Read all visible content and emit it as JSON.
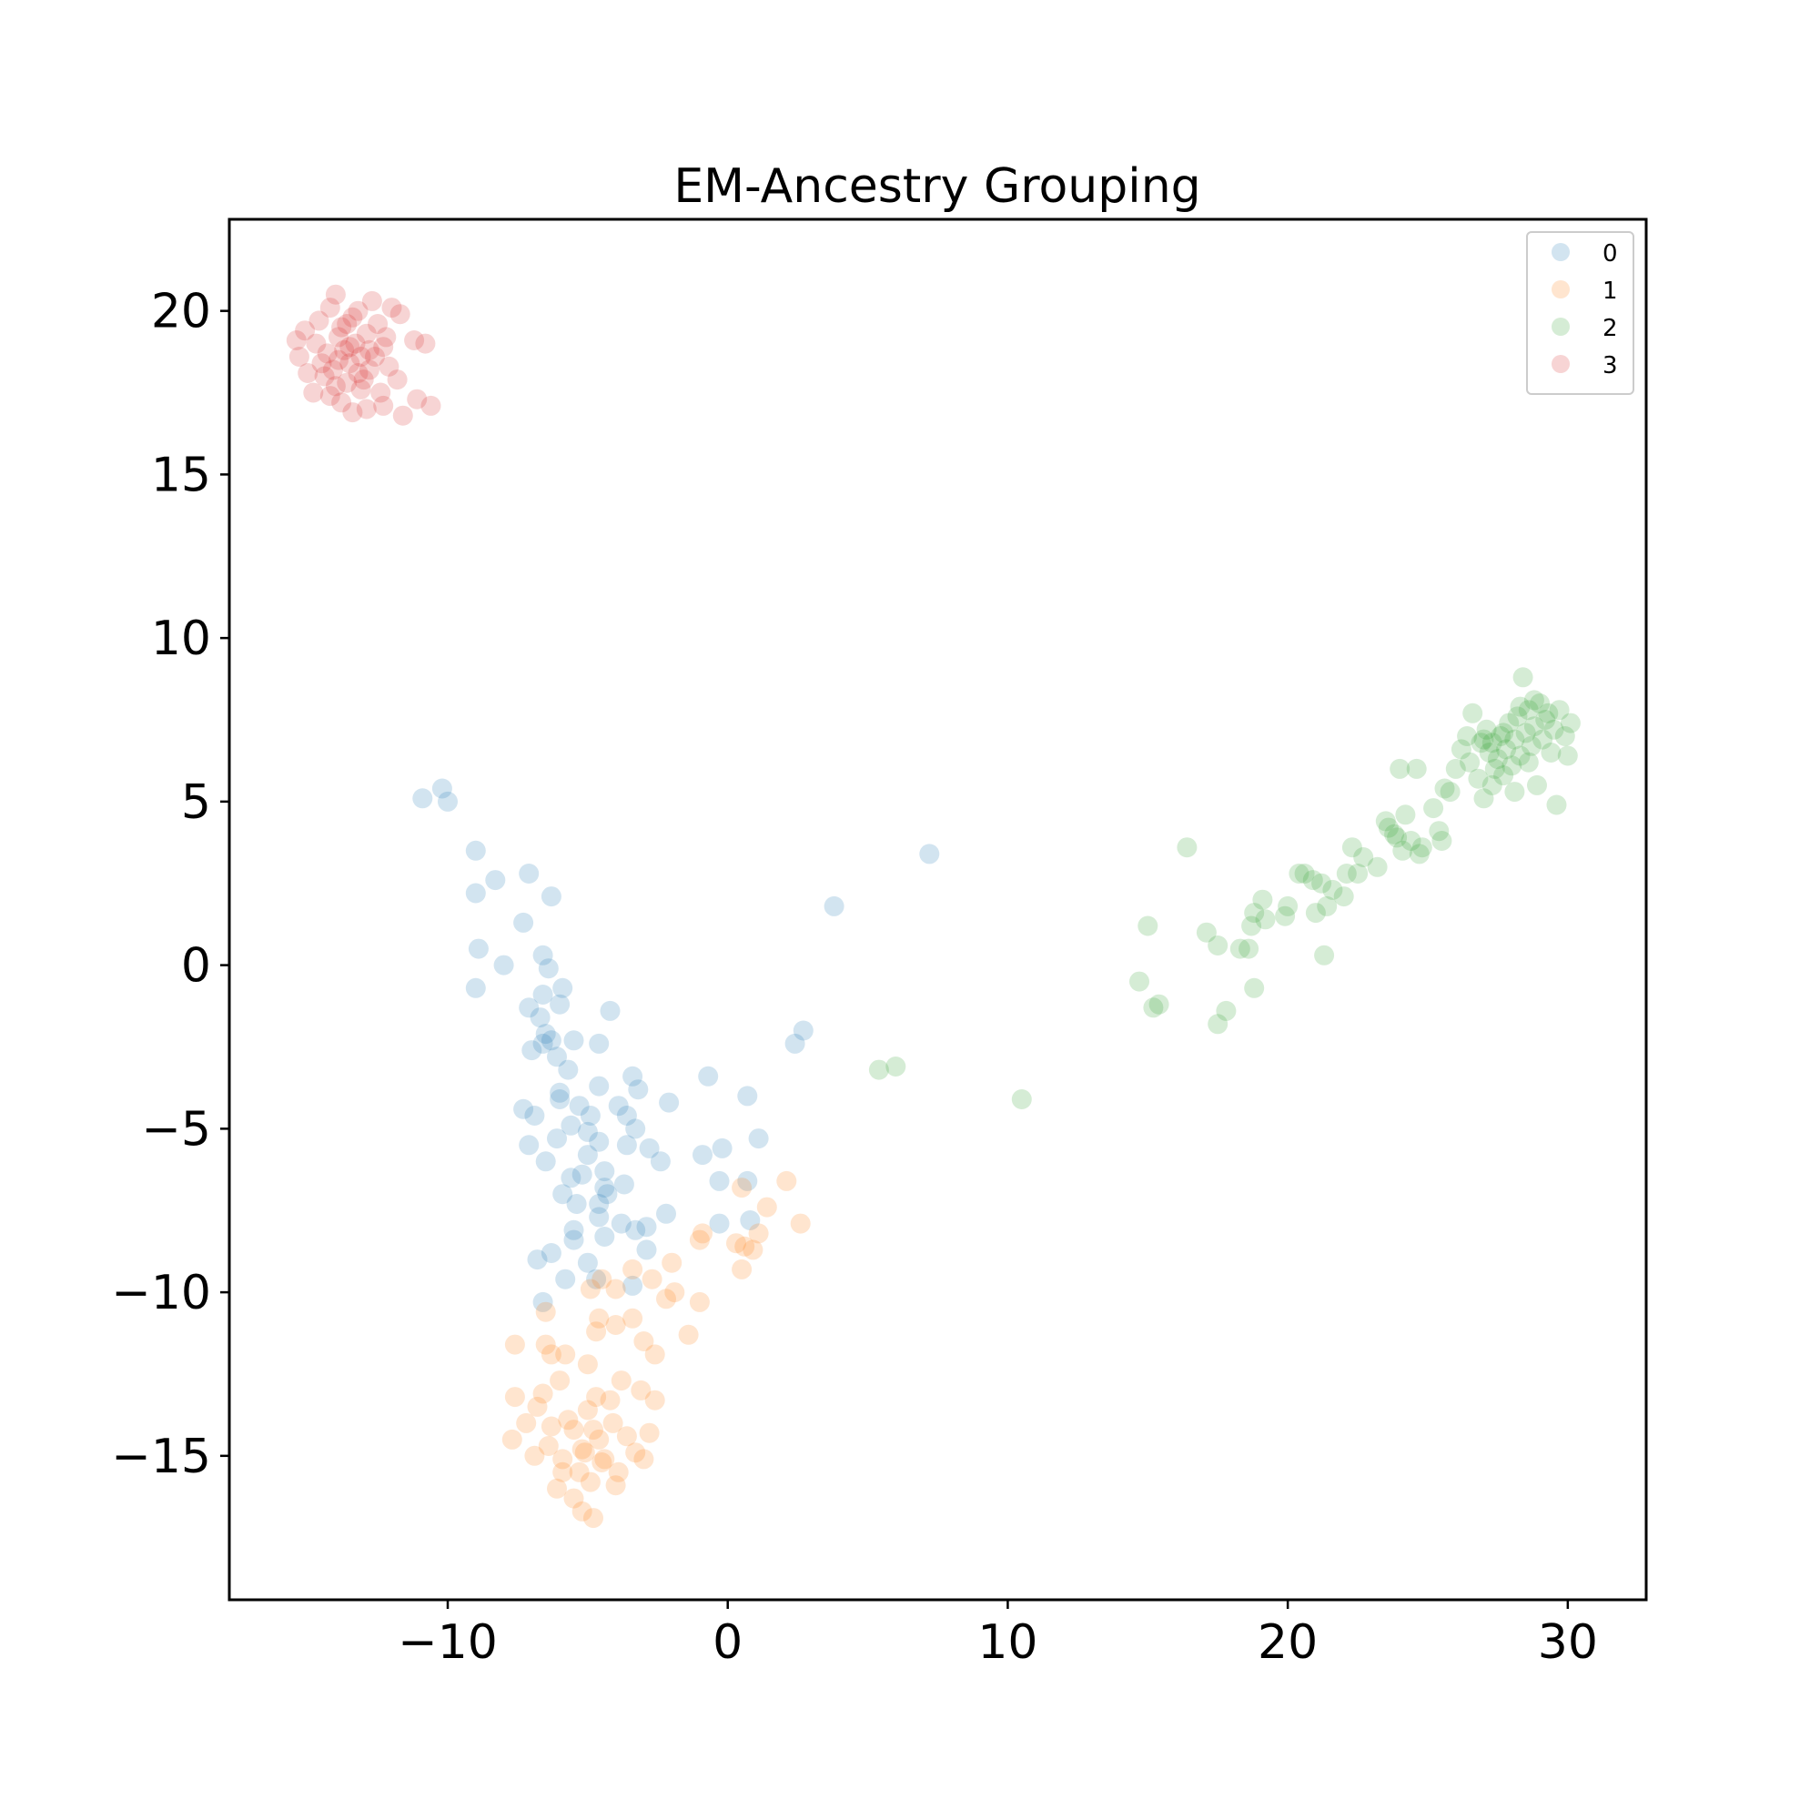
{
  "chart_data": {
    "type": "scatter",
    "title": "EM-Ancestry Grouping",
    "xlabel": "",
    "ylabel": "",
    "xlim": [
      -17.8,
      32.8
    ],
    "ylim": [
      -19.4,
      22.8
    ],
    "xticks": [
      -10,
      0,
      10,
      20,
      30
    ],
    "yticks": [
      -15,
      -10,
      -5,
      0,
      5,
      10,
      15,
      20
    ],
    "xtick_labels": [
      "−10",
      "0",
      "10",
      "20",
      "30"
    ],
    "ytick_labels": [
      "−15",
      "−10",
      "−5",
      "0",
      "5",
      "10",
      "15",
      "20"
    ],
    "grid": false,
    "legend_position": "top-right",
    "series": [
      {
        "name": "0",
        "color": "#1f77b4",
        "points": [
          [
            -10.9,
            5.1
          ],
          [
            -10.2,
            5.4
          ],
          [
            -10.0,
            5.0
          ],
          [
            -9.0,
            3.5
          ],
          [
            -9.0,
            2.2
          ],
          [
            -8.3,
            2.6
          ],
          [
            -7.1,
            2.8
          ],
          [
            -6.3,
            2.1
          ],
          [
            -7.3,
            1.3
          ],
          [
            -8.9,
            0.5
          ],
          [
            -8.0,
            0.0
          ],
          [
            -6.6,
            0.3
          ],
          [
            -9.0,
            -0.7
          ],
          [
            -6.4,
            -0.1
          ],
          [
            -5.9,
            -0.7
          ],
          [
            -6.6,
            -0.9
          ],
          [
            -7.1,
            -1.3
          ],
          [
            -6.0,
            -1.2
          ],
          [
            -6.7,
            -1.6
          ],
          [
            -4.2,
            -1.4
          ],
          [
            -6.5,
            -2.1
          ],
          [
            -6.3,
            -2.3
          ],
          [
            -7.0,
            -2.6
          ],
          [
            -5.5,
            -2.3
          ],
          [
            -4.6,
            -2.4
          ],
          [
            -6.1,
            -2.8
          ],
          [
            -6.6,
            -2.4
          ],
          [
            -5.7,
            -3.2
          ],
          [
            -6.0,
            -3.9
          ],
          [
            -4.6,
            -3.7
          ],
          [
            -3.4,
            -3.4
          ],
          [
            -3.2,
            -3.8
          ],
          [
            -6.0,
            -4.1
          ],
          [
            -5.3,
            -4.3
          ],
          [
            -7.3,
            -4.4
          ],
          [
            -3.9,
            -4.3
          ],
          [
            -4.9,
            -4.6
          ],
          [
            -3.6,
            -4.6
          ],
          [
            -2.1,
            -4.2
          ],
          [
            -6.9,
            -4.6
          ],
          [
            -5.6,
            -4.9
          ],
          [
            -5.0,
            -5.1
          ],
          [
            -3.3,
            -5.0
          ],
          [
            -6.1,
            -5.3
          ],
          [
            -4.6,
            -5.4
          ],
          [
            -3.6,
            -5.5
          ],
          [
            -7.1,
            -5.5
          ],
          [
            -2.8,
            -5.6
          ],
          [
            -5.0,
            -5.8
          ],
          [
            -2.4,
            -6.0
          ],
          [
            -6.5,
            -6.0
          ],
          [
            -4.4,
            -6.3
          ],
          [
            -5.2,
            -6.4
          ],
          [
            -5.6,
            -6.5
          ],
          [
            -3.7,
            -6.7
          ],
          [
            -4.4,
            -6.8
          ],
          [
            -4.3,
            -7.0
          ],
          [
            -4.6,
            -7.3
          ],
          [
            -5.4,
            -7.3
          ],
          [
            -5.9,
            -7.0
          ],
          [
            -4.6,
            -7.7
          ],
          [
            -2.2,
            -7.6
          ],
          [
            -3.8,
            -7.9
          ],
          [
            -3.3,
            -8.1
          ],
          [
            -2.9,
            -8.0
          ],
          [
            -5.5,
            -8.1
          ],
          [
            -5.5,
            -8.4
          ],
          [
            -4.4,
            -8.3
          ],
          [
            -2.9,
            -8.7
          ],
          [
            -6.3,
            -8.8
          ],
          [
            -6.8,
            -9.0
          ],
          [
            -5.0,
            -9.1
          ],
          [
            -4.7,
            -9.6
          ],
          [
            -5.8,
            -9.6
          ],
          [
            -3.4,
            -9.8
          ],
          [
            -6.6,
            -10.3
          ],
          [
            -0.9,
            -5.8
          ],
          [
            -0.2,
            -5.6
          ],
          [
            -0.3,
            -6.6
          ],
          [
            0.7,
            -6.6
          ],
          [
            1.1,
            -5.3
          ],
          [
            0.7,
            -4.0
          ],
          [
            -0.7,
            -3.4
          ],
          [
            -0.3,
            -7.9
          ],
          [
            0.8,
            -7.8
          ],
          [
            2.4,
            -2.4
          ],
          [
            2.7,
            -2.0
          ],
          [
            3.8,
            1.8
          ],
          [
            7.2,
            3.4
          ]
        ]
      },
      {
        "name": "1",
        "color": "#ff7f0e",
        "points": [
          [
            -7.6,
            -11.6
          ],
          [
            -7.6,
            -13.2
          ],
          [
            -7.7,
            -14.5
          ],
          [
            -6.5,
            -11.6
          ],
          [
            -6.5,
            -10.6
          ],
          [
            -6.3,
            -11.9
          ],
          [
            -5.8,
            -11.9
          ],
          [
            -5.0,
            -12.2
          ],
          [
            -4.6,
            -10.8
          ],
          [
            -4.0,
            -11.0
          ],
          [
            -3.4,
            -10.8
          ],
          [
            -3.0,
            -11.5
          ],
          [
            -2.6,
            -11.9
          ],
          [
            -1.4,
            -11.3
          ],
          [
            -2.2,
            -10.2
          ],
          [
            -1.9,
            -10.0
          ],
          [
            -1.0,
            -10.3
          ],
          [
            -2.7,
            -9.6
          ],
          [
            -3.4,
            -9.3
          ],
          [
            -2.0,
            -9.1
          ],
          [
            -4.0,
            -9.9
          ],
          [
            -4.9,
            -9.9
          ],
          [
            -4.5,
            -9.6
          ],
          [
            -4.7,
            -11.2
          ],
          [
            -3.8,
            -12.7
          ],
          [
            -3.1,
            -13.0
          ],
          [
            -2.6,
            -13.3
          ],
          [
            -6.1,
            -16.0
          ],
          [
            -5.2,
            -16.7
          ],
          [
            -4.8,
            -16.9
          ],
          [
            -3.9,
            -15.5
          ],
          [
            -2.8,
            -14.3
          ],
          [
            -3.0,
            -15.1
          ],
          [
            -6.4,
            -14.7
          ],
          [
            -5.9,
            -15.5
          ],
          [
            -6.8,
            -13.5
          ],
          [
            -7.2,
            -14.0
          ],
          [
            -6.0,
            -12.7
          ],
          [
            -4.1,
            -14.0
          ],
          [
            -4.7,
            -13.2
          ],
          [
            -5.2,
            -14.8
          ],
          [
            -4.4,
            -15.1
          ],
          [
            -5.5,
            -14.2
          ],
          [
            -4.9,
            -15.8
          ],
          [
            -5.7,
            -13.9
          ],
          [
            -4.6,
            -14.5
          ],
          [
            -5.3,
            -15.5
          ],
          [
            -6.3,
            -14.1
          ],
          [
            -3.6,
            -14.4
          ],
          [
            -5.0,
            -13.6
          ],
          [
            -4.2,
            -13.3
          ],
          [
            -5.5,
            -16.3
          ],
          [
            -6.9,
            -15.0
          ],
          [
            -3.3,
            -14.9
          ],
          [
            -4.0,
            -15.9
          ],
          [
            -5.9,
            -15.1
          ],
          [
            -6.6,
            -13.1
          ],
          [
            -4.8,
            -14.2
          ],
          [
            -5.1,
            -14.9
          ],
          [
            -4.5,
            -15.2
          ],
          [
            -1.0,
            -8.4
          ],
          [
            -0.9,
            -8.2
          ],
          [
            0.3,
            -8.5
          ],
          [
            0.6,
            -8.6
          ],
          [
            0.9,
            -8.7
          ],
          [
            1.1,
            -8.2
          ],
          [
            1.4,
            -7.4
          ],
          [
            0.5,
            -9.3
          ],
          [
            2.1,
            -6.6
          ],
          [
            2.6,
            -7.9
          ],
          [
            0.5,
            -6.8
          ]
        ]
      },
      {
        "name": "2",
        "color": "#2ca02c",
        "points": [
          [
            5.4,
            -3.2
          ],
          [
            6.0,
            -3.1
          ],
          [
            10.5,
            -4.1
          ],
          [
            14.7,
            -0.5
          ],
          [
            15.0,
            1.2
          ],
          [
            15.2,
            -1.3
          ],
          [
            15.4,
            -1.2
          ],
          [
            16.4,
            3.6
          ],
          [
            17.1,
            1.0
          ],
          [
            17.5,
            0.6
          ],
          [
            17.5,
            -1.8
          ],
          [
            17.8,
            -1.4
          ],
          [
            18.3,
            0.5
          ],
          [
            18.6,
            0.5
          ],
          [
            18.7,
            1.2
          ],
          [
            18.8,
            -0.7
          ],
          [
            18.8,
            1.6
          ],
          [
            19.1,
            2.0
          ],
          [
            19.2,
            1.4
          ],
          [
            19.9,
            1.5
          ],
          [
            20.0,
            1.8
          ],
          [
            20.4,
            2.8
          ],
          [
            20.6,
            2.8
          ],
          [
            20.9,
            2.6
          ],
          [
            21.0,
            1.6
          ],
          [
            21.2,
            2.5
          ],
          [
            21.3,
            0.3
          ],
          [
            21.4,
            1.8
          ],
          [
            21.6,
            2.3
          ],
          [
            22.0,
            2.1
          ],
          [
            22.1,
            2.8
          ],
          [
            22.3,
            3.6
          ],
          [
            22.5,
            2.8
          ],
          [
            22.7,
            3.3
          ],
          [
            23.2,
            3.0
          ],
          [
            23.5,
            4.4
          ],
          [
            23.6,
            4.2
          ],
          [
            23.8,
            4.0
          ],
          [
            23.9,
            3.9
          ],
          [
            24.0,
            6.0
          ],
          [
            24.1,
            3.5
          ],
          [
            24.2,
            4.6
          ],
          [
            24.4,
            3.8
          ],
          [
            24.6,
            6.0
          ],
          [
            24.7,
            3.4
          ],
          [
            24.8,
            3.6
          ],
          [
            25.2,
            4.8
          ],
          [
            25.4,
            4.1
          ],
          [
            25.5,
            3.8
          ],
          [
            25.6,
            5.4
          ],
          [
            25.8,
            5.3
          ],
          [
            26.0,
            6.0
          ],
          [
            26.2,
            6.6
          ],
          [
            26.5,
            6.2
          ],
          [
            26.6,
            7.7
          ],
          [
            26.8,
            5.7
          ],
          [
            27.0,
            5.1
          ],
          [
            27.1,
            7.2
          ],
          [
            27.2,
            6.5
          ],
          [
            27.3,
            6.8
          ],
          [
            27.4,
            6.0
          ],
          [
            27.5,
            6.3
          ],
          [
            27.6,
            7.0
          ],
          [
            27.7,
            5.8
          ],
          [
            27.8,
            6.6
          ],
          [
            27.9,
            7.4
          ],
          [
            28.0,
            6.1
          ],
          [
            28.1,
            6.9
          ],
          [
            28.2,
            7.6
          ],
          [
            28.3,
            6.4
          ],
          [
            28.4,
            8.8
          ],
          [
            28.5,
            7.1
          ],
          [
            28.6,
            7.8
          ],
          [
            28.7,
            6.7
          ],
          [
            28.8,
            7.3
          ],
          [
            28.9,
            5.5
          ],
          [
            29.0,
            8.0
          ],
          [
            29.1,
            6.9
          ],
          [
            29.2,
            7.5
          ],
          [
            29.3,
            7.7
          ],
          [
            29.4,
            6.5
          ],
          [
            29.5,
            7.2
          ],
          [
            29.6,
            4.9
          ],
          [
            29.7,
            7.8
          ],
          [
            30.0,
            6.4
          ],
          [
            30.1,
            7.4
          ],
          [
            26.9,
            6.8
          ],
          [
            27.7,
            7.1
          ],
          [
            28.6,
            6.2
          ],
          [
            27.3,
            5.5
          ],
          [
            28.1,
            5.3
          ],
          [
            28.8,
            8.1
          ],
          [
            26.4,
            7.0
          ],
          [
            29.9,
            7.0
          ],
          [
            27.0,
            6.9
          ],
          [
            28.3,
            7.9
          ]
        ]
      },
      {
        "name": "3",
        "color": "#d62728",
        "points": [
          [
            -14.6,
            19.7
          ],
          [
            -14.2,
            20.1
          ],
          [
            -14.0,
            20.5
          ],
          [
            -13.6,
            19.6
          ],
          [
            -13.2,
            20.0
          ],
          [
            -12.7,
            20.3
          ],
          [
            -12.0,
            20.1
          ],
          [
            -11.7,
            19.9
          ],
          [
            -15.4,
            19.1
          ],
          [
            -15.3,
            18.6
          ],
          [
            -15.0,
            18.1
          ],
          [
            -14.8,
            17.5
          ],
          [
            -14.2,
            17.4
          ],
          [
            -13.8,
            17.2
          ],
          [
            -13.4,
            16.9
          ],
          [
            -12.9,
            17.0
          ],
          [
            -12.3,
            17.1
          ],
          [
            -11.6,
            16.8
          ],
          [
            -11.1,
            17.3
          ],
          [
            -10.6,
            17.1
          ],
          [
            -11.2,
            19.1
          ],
          [
            -10.8,
            19.0
          ],
          [
            -12.3,
            18.9
          ],
          [
            -12.8,
            18.2
          ],
          [
            -12.1,
            18.3
          ],
          [
            -11.8,
            17.9
          ],
          [
            -14.7,
            19.0
          ],
          [
            -14.3,
            18.7
          ],
          [
            -14.1,
            18.2
          ],
          [
            -13.9,
            19.2
          ],
          [
            -13.7,
            18.8
          ],
          [
            -13.5,
            18.4
          ],
          [
            -13.3,
            19.0
          ],
          [
            -13.1,
            18.6
          ],
          [
            -12.9,
            19.3
          ],
          [
            -13.0,
            17.9
          ],
          [
            -13.6,
            17.8
          ],
          [
            -12.6,
            18.6
          ],
          [
            -14.4,
            18.0
          ],
          [
            -13.8,
            19.5
          ],
          [
            -13.2,
            18.1
          ],
          [
            -12.5,
            19.6
          ],
          [
            -14.5,
            18.4
          ],
          [
            -13.4,
            19.8
          ],
          [
            -12.4,
            17.5
          ],
          [
            -14.0,
            17.7
          ],
          [
            -13.5,
            18.9
          ],
          [
            -12.8,
            18.8
          ],
          [
            -15.1,
            19.4
          ],
          [
            -13.9,
            18.5
          ],
          [
            -13.1,
            17.6
          ],
          [
            -12.2,
            19.2
          ]
        ]
      }
    ]
  }
}
